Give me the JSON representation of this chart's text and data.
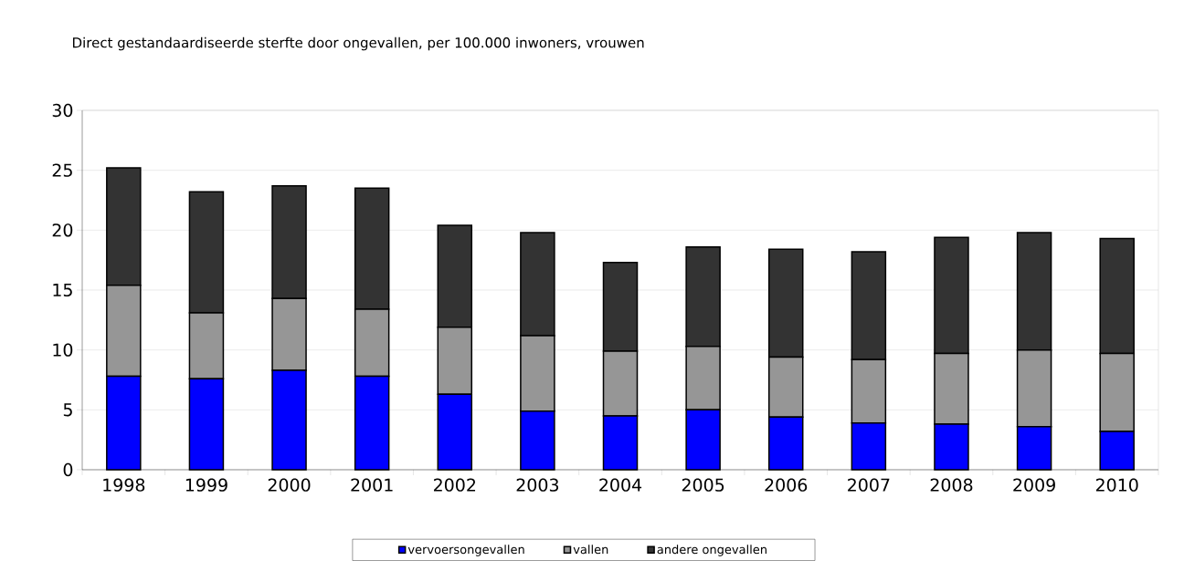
{
  "chart_data": {
    "type": "bar",
    "title": "Direct gestandaardiseerde sterfte door ongevallen, per 100.000 inwoners, vrouwen",
    "categories": [
      "1998",
      "1999",
      "2000",
      "2001",
      "2002",
      "2003",
      "2004",
      "2005",
      "2006",
      "2007",
      "2008",
      "2009",
      "2010"
    ],
    "series": [
      {
        "name": "vervoersongevallen",
        "color": "#0000ff",
        "values": [
          7.8,
          7.6,
          8.3,
          7.8,
          6.3,
          4.9,
          4.5,
          5.0,
          4.4,
          3.9,
          3.8,
          3.6,
          3.2
        ]
      },
      {
        "name": "vallen",
        "color": "#969696",
        "values": [
          7.6,
          5.5,
          6.0,
          5.6,
          5.6,
          6.3,
          5.4,
          5.3,
          5.0,
          5.3,
          5.9,
          6.4,
          6.5
        ]
      },
      {
        "name": "andere ongevallen",
        "color": "#333333",
        "values": [
          9.8,
          10.1,
          9.4,
          10.1,
          8.5,
          8.6,
          7.4,
          8.3,
          9.0,
          9.0,
          9.7,
          9.8,
          9.6
        ]
      }
    ],
    "stacked": true,
    "ylim": [
      0,
      30
    ],
    "yticks": [
      0,
      5,
      10,
      15,
      20,
      25,
      30
    ],
    "grid": "y",
    "legend": "bottom"
  }
}
